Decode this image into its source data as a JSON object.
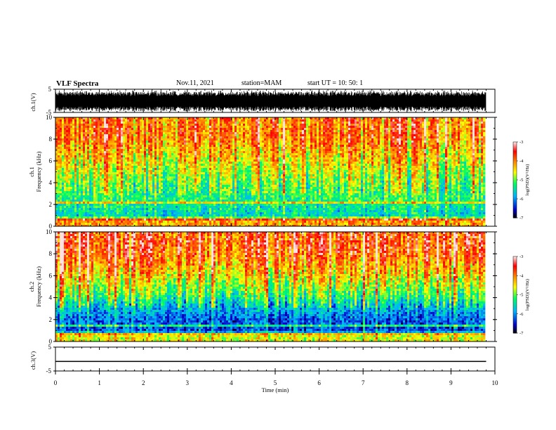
{
  "header": {
    "title": "VLF Spectra",
    "date": "Nov.11, 2021",
    "station": "station=MAM",
    "start": "start  UT =   10: 50: 1"
  },
  "colorbar": {
    "label": "log(PSD)(V²/Hz)",
    "ticks": [
      "-3",
      "-4",
      "-5",
      "-6",
      "-7"
    ],
    "colors": [
      "#ffffff",
      "#ff0000",
      "#ffff00",
      "#00ff00",
      "#00ffff",
      "#0000ff",
      "#000000"
    ]
  },
  "chart_data": [
    {
      "type": "line",
      "panel": "ch1-waveform",
      "ylabel": "ch.1(V)",
      "yticks": [
        "5",
        "-5"
      ],
      "ylim": [
        -5,
        5
      ],
      "x": [
        0,
        9.8
      ],
      "description_values": {
        "amplitude_range": [
          -4.5,
          4.5
        ]
      }
    },
    {
      "type": "heatmap",
      "panel": "ch1-spectrogram",
      "ylabel_channel": "ch.1",
      "ylabel": "Frequency (kHz)",
      "yticks": [
        "10",
        "8",
        "6",
        "4",
        "2",
        "0"
      ],
      "ylim": [
        0,
        10
      ],
      "xlim": [
        0,
        9.8
      ],
      "zlim": [
        -7,
        -3
      ],
      "profile": {
        "freq_khz": [
          0.5,
          1,
          2,
          3,
          4,
          5,
          6,
          7,
          8,
          9,
          10
        ],
        "mean_log_psd": [
          -4.2,
          -5.6,
          -5.4,
          -5.2,
          -5.0,
          -4.8,
          -4.5,
          -4.3,
          -4.0,
          -4.0,
          -4.0
        ]
      }
    },
    {
      "type": "heatmap",
      "panel": "ch2-spectrogram",
      "ylabel_channel": "ch.2",
      "ylabel": "Frequency (kHz)",
      "yticks": [
        "10",
        "8",
        "6",
        "4",
        "2",
        "0"
      ],
      "ylim": [
        0,
        10
      ],
      "xlim": [
        0,
        9.8
      ],
      "zlim": [
        -7,
        -3
      ],
      "profile": {
        "freq_khz": [
          0.5,
          1,
          2,
          3,
          4,
          5,
          6,
          7,
          8,
          9,
          10
        ],
        "mean_log_psd": [
          -4.6,
          -6.3,
          -6.2,
          -5.8,
          -5.2,
          -4.8,
          -4.4,
          -4.1,
          -3.8,
          -3.7,
          -3.7
        ]
      }
    },
    {
      "type": "line",
      "panel": "ch3-waveform",
      "ylabel": "ch.3(V)",
      "yticks": [
        "5",
        "-5"
      ],
      "ylim": [
        -5,
        5
      ],
      "x": [
        0,
        9.8
      ],
      "y": [
        -1,
        -1
      ]
    }
  ],
  "xaxis": {
    "label": "Time (min)",
    "ticks": [
      "0",
      "1",
      "2",
      "3",
      "4",
      "5",
      "6",
      "7",
      "8",
      "9",
      "10"
    ],
    "xlim": [
      0,
      10
    ]
  }
}
